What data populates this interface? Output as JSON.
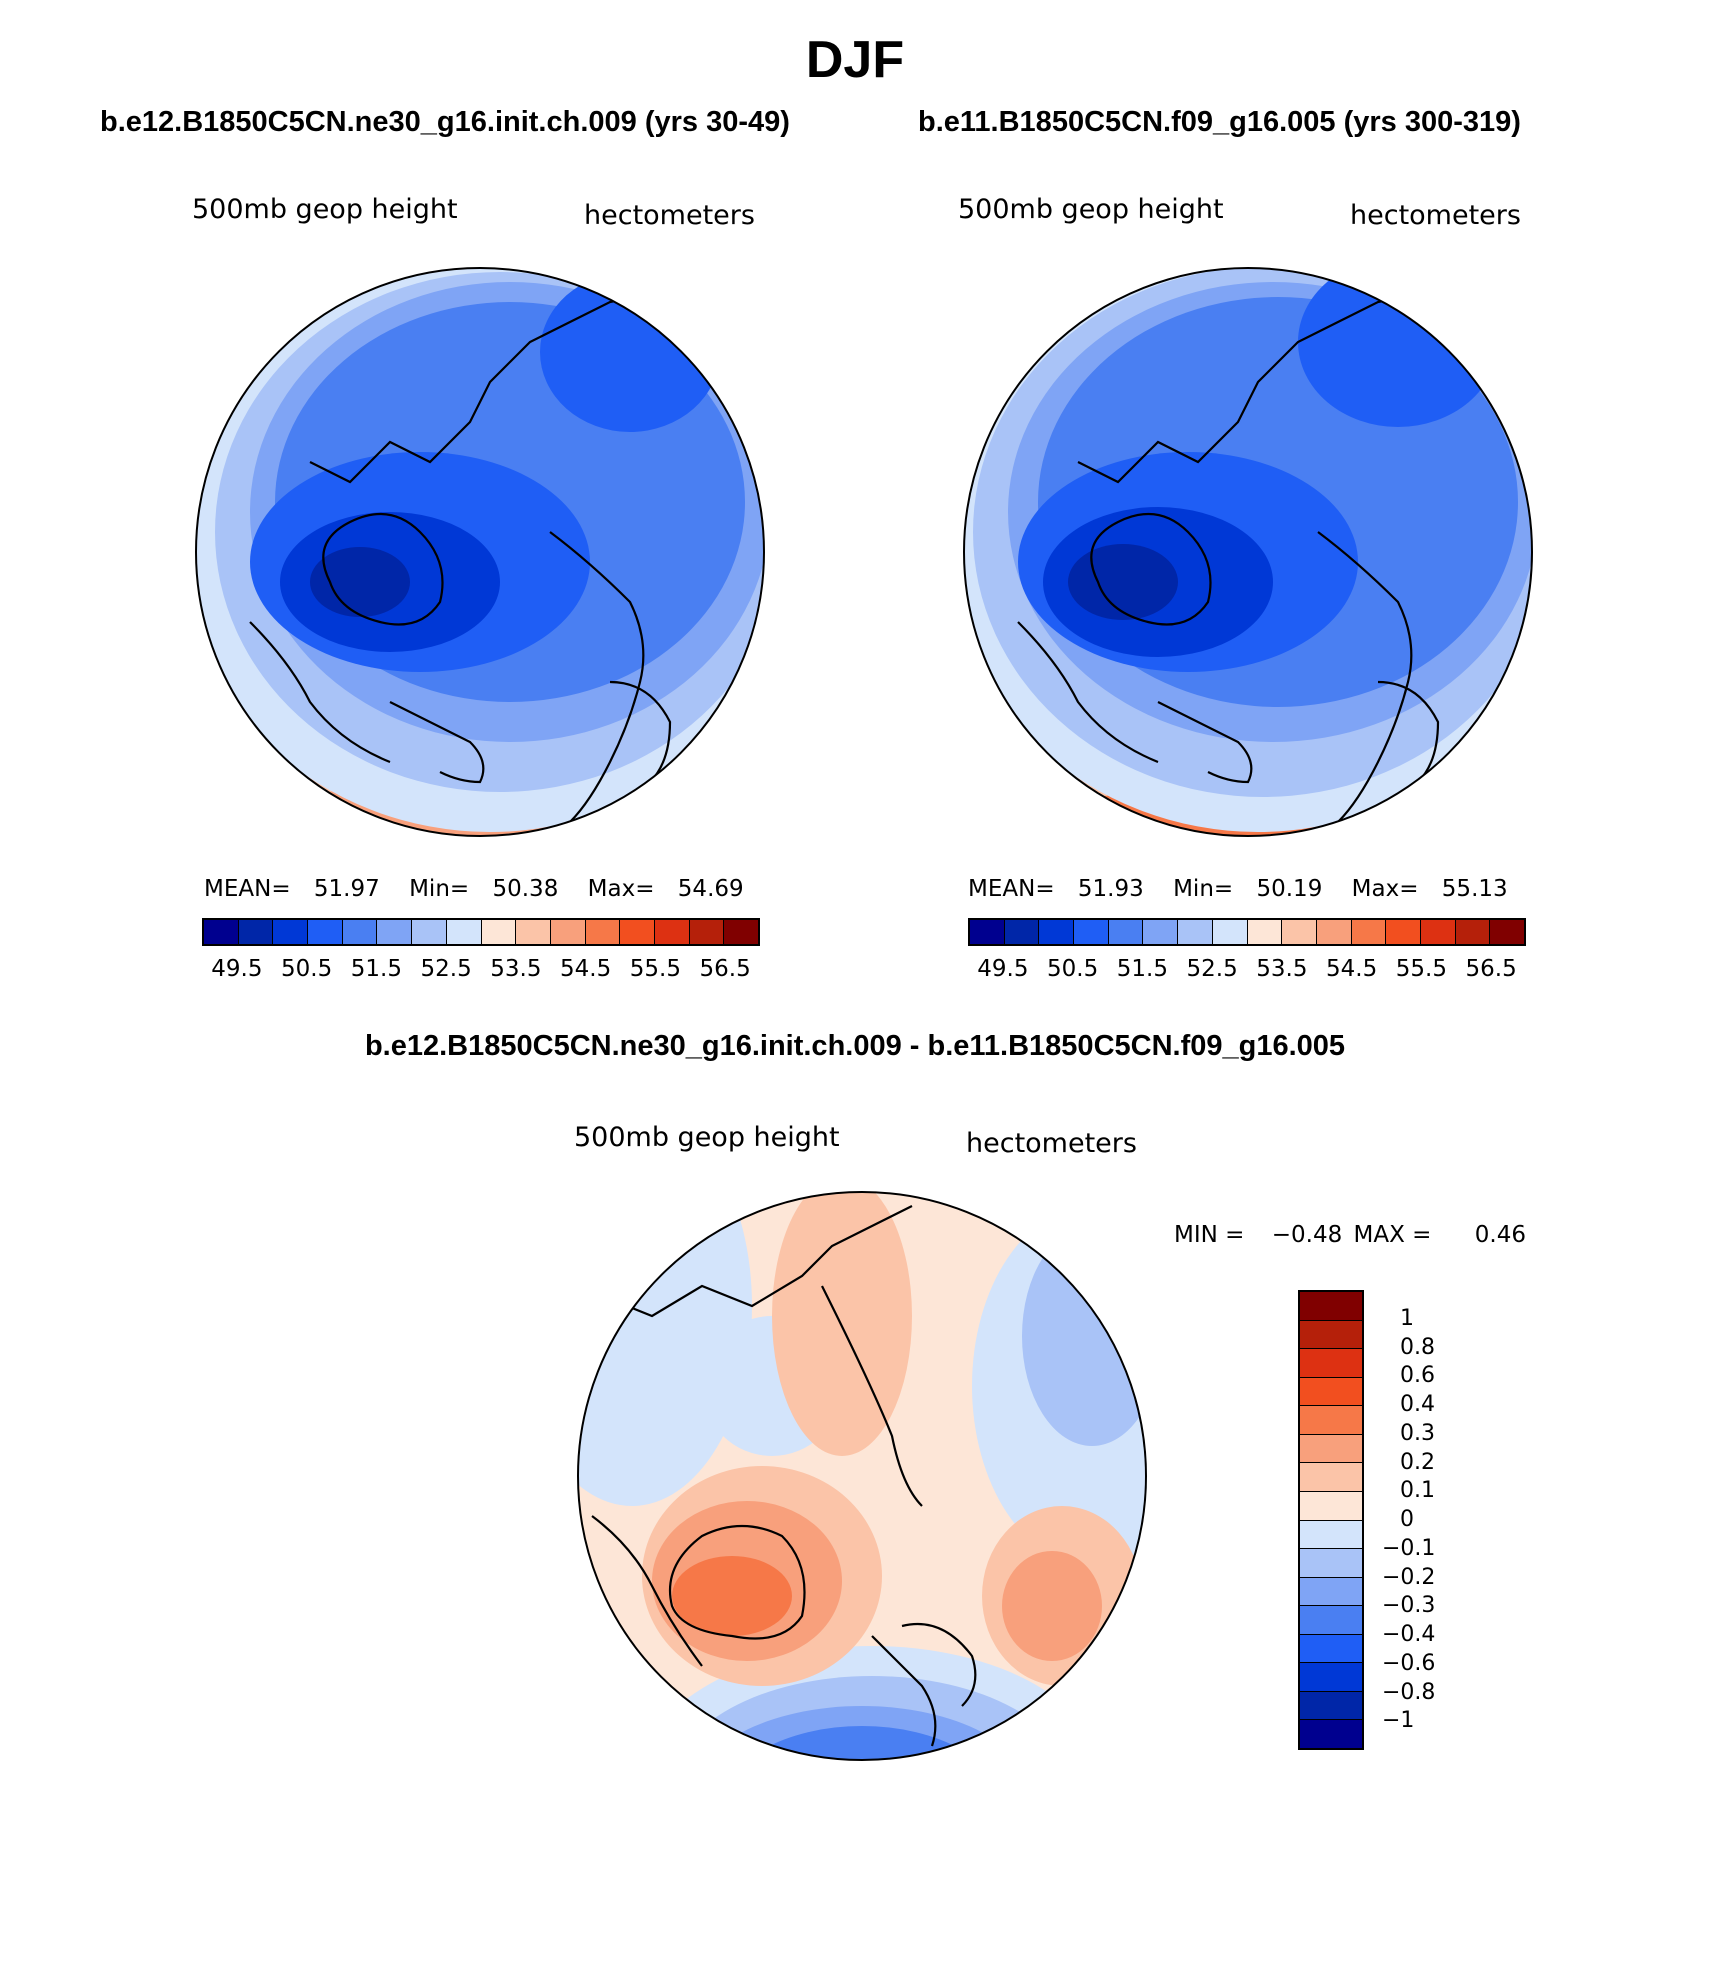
{
  "season": "DJF",
  "case1": "b.e12.B1850C5CN.ne30_g16.init.ch.009 (yrs 30-49)",
  "case2": "b.e11.B1850C5CN.f09_g16.005 (yrs 300-319)",
  "diff_title": "b.e12.B1850C5CN.ne30_g16.init.ch.009 - b.e11.B1850C5CN.f09_g16.005",
  "panels": [
    {
      "var": "500mb geop height",
      "units": "hectometers",
      "mean_label": "MEAN=",
      "mean": "51.97",
      "min_label": "Min=",
      "min": "50.38",
      "max_label": "Max=",
      "max": "54.69"
    },
    {
      "var": "500mb geop height",
      "units": "hectometers",
      "mean_label": "MEAN=",
      "mean": "51.93",
      "min_label": "Min=",
      "min": "50.19",
      "max_label": "Max=",
      "max": "55.13"
    },
    {
      "var": "500mb geop height",
      "units": "hectometers",
      "min_label": "MIN =",
      "min": "−0.48",
      "max_label": "MAX =",
      "max": "0.46"
    }
  ],
  "colorbar_colors": [
    "#00008f",
    "#0026a8",
    "#0038d6",
    "#1f5ef5",
    "#4a7ff2",
    "#7fa4f5",
    "#a9c3f7",
    "#d3e4fb",
    "#fde6d7",
    "#fbc4a8",
    "#f8a07c",
    "#f67848",
    "#f24f1f",
    "#dd3112",
    "#b5200a",
    "#800000"
  ],
  "colorbar_labels": [
    "49.5",
    "50.5",
    "51.5",
    "52.5",
    "53.5",
    "54.5",
    "55.5",
    "56.5"
  ],
  "diff_colors": [
    "#800000",
    "#b5200a",
    "#dd3112",
    "#f24f1f",
    "#f67848",
    "#f8a07c",
    "#fbc4a8",
    "#fde6d7",
    "#d3e4fb",
    "#a9c3f7",
    "#7fa4f5",
    "#4a7ff2",
    "#1f5ef5",
    "#0038d6",
    "#0026a8",
    "#00008f"
  ],
  "diff_labels": [
    "1",
    "0.8",
    "0.6",
    "0.4",
    "0.3",
    "0.2",
    "0.1",
    "0",
    "−0.1",
    "−0.2",
    "−0.3",
    "−0.4",
    "−0.6",
    "−0.8",
    "−1"
  ]
}
